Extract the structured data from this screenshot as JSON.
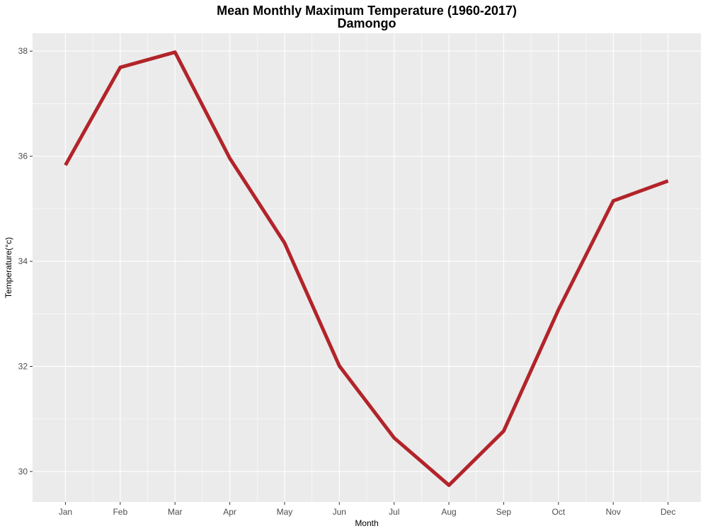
{
  "chart_data": {
    "type": "line",
    "title": "Mean Monthly Maximum Temperature (1960-2017)",
    "subtitle": "Damongo",
    "xlabel": "Month",
    "ylabel": "Temperature(°c)",
    "categories": [
      "Jan",
      "Feb",
      "Mar",
      "Apr",
      "May",
      "Jun",
      "Jul",
      "Aug",
      "Sep",
      "Oct",
      "Nov",
      "Dec"
    ],
    "series": [
      {
        "values": [
          35.83,
          37.69,
          37.98,
          35.96,
          34.35,
          32.01,
          30.64,
          29.74,
          30.77,
          33.08,
          35.15,
          35.53
        ],
        "color": "#b2242a"
      }
    ],
    "ylim": [
      29.42,
      38.34
    ],
    "yticks": [
      30,
      32,
      34,
      36,
      38
    ],
    "grid": true,
    "panel_background": "#ebebeb",
    "grid_color": "#ffffff"
  }
}
